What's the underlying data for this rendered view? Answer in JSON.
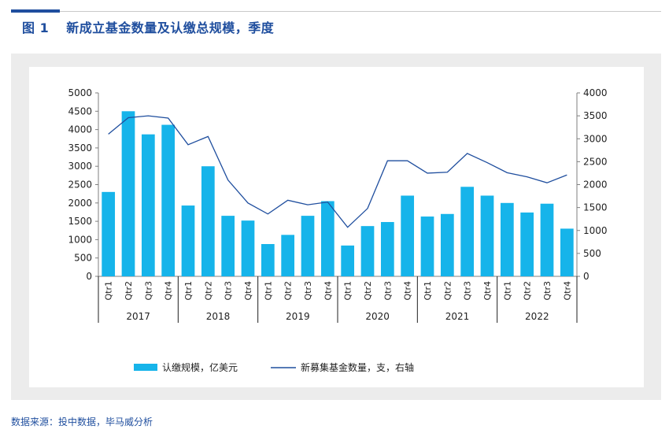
{
  "figure": {
    "label": "图 1",
    "title": "新成立基金数量及认缴总规模，季度",
    "source": "数据来源：投中数据，毕马威分析"
  },
  "colors": {
    "bar": "#16b4ea",
    "line": "#1f4e9e",
    "title": "#1f4e9e"
  },
  "chart_data": {
    "type": "bar",
    "categories": [
      "Qtr1",
      "Qtr2",
      "Qtr3",
      "Qtr4",
      "Qtr1",
      "Qtr2",
      "Qtr3",
      "Qtr4",
      "Qtr1",
      "Qtr2",
      "Qtr3",
      "Qtr4",
      "Qtr1",
      "Qtr2",
      "Qtr3",
      "Qtr4",
      "Qtr1",
      "Qtr2",
      "Qtr3",
      "Qtr4",
      "Qtr1",
      "Qtr2",
      "Qtr3",
      "Qtr4"
    ],
    "year_groups": [
      {
        "label": "2017",
        "count": 4
      },
      {
        "label": "2018",
        "count": 4
      },
      {
        "label": "2019",
        "count": 4
      },
      {
        "label": "2020",
        "count": 4
      },
      {
        "label": "2021",
        "count": 4
      },
      {
        "label": "2022",
        "count": 4
      }
    ],
    "series": [
      {
        "name": "认缴规模，亿美元",
        "type": "bar",
        "axis": "left",
        "values": [
          2300,
          4500,
          3870,
          4130,
          1930,
          3000,
          1650,
          1520,
          880,
          1130,
          1650,
          2050,
          840,
          1370,
          1480,
          2200,
          1630,
          1700,
          2440,
          2200,
          2000,
          1740,
          1980,
          1300
        ]
      },
      {
        "name": "新募集基金数量，支，右轴",
        "type": "line",
        "axis": "right",
        "values": [
          3100,
          3460,
          3500,
          3450,
          2870,
          3050,
          2100,
          1600,
          1360,
          1660,
          1560,
          1620,
          1070,
          1480,
          2520,
          2520,
          2250,
          2270,
          2680,
          2480,
          2260,
          2170,
          2040,
          2210
        ]
      }
    ],
    "y_left": {
      "min": 0,
      "max": 5000,
      "step": 500
    },
    "y_right": {
      "min": 0,
      "max": 4000,
      "step": 500
    },
    "grid": false,
    "legend_position": "bottom"
  }
}
